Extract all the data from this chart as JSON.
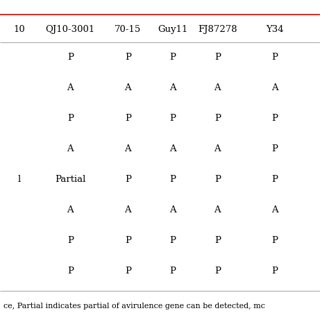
{
  "headers": [
    "10",
    "QJ10-3001",
    "70-15",
    "Guy11",
    "FJ87278",
    "Y34"
  ],
  "rows": [
    [
      "",
      "P",
      "P",
      "P",
      "P",
      "P"
    ],
    [
      "",
      "A",
      "A",
      "A",
      "A",
      "A"
    ],
    [
      "",
      "P",
      "P",
      "P",
      "P",
      "P"
    ],
    [
      "",
      "A",
      "A",
      "A",
      "A",
      "P"
    ],
    [
      "l",
      "Partial",
      "P",
      "P",
      "P",
      "P"
    ],
    [
      "",
      "A",
      "A",
      "A",
      "A",
      "A"
    ],
    [
      "",
      "P",
      "P",
      "P",
      "P",
      "P"
    ],
    [
      "",
      "P",
      "P",
      "P",
      "P",
      "P"
    ]
  ],
  "footer": "ce, Partial indicates partial of avirulence gene can be detected, mc",
  "header_line_color": "#c0392b",
  "separator_color": "#aaaaaa",
  "bg_color": "#ffffff",
  "text_color": "#000000",
  "font_size": 9.5,
  "header_font_size": 9.5,
  "footer_font_size": 8.0
}
